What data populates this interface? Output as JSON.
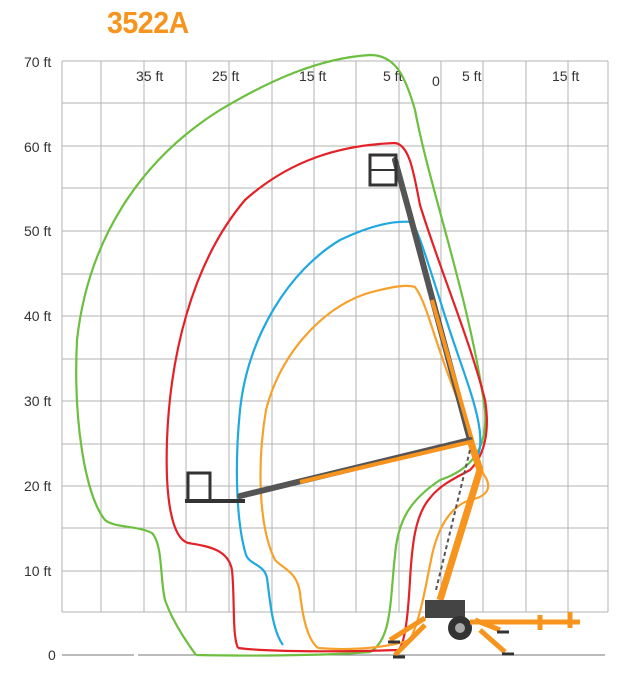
{
  "title": "3522A",
  "colors": {
    "title": "#f7941d",
    "grid": "#b3b3b3",
    "envelopes": [
      "#6cbf3f",
      "#e32228",
      "#20a9e0",
      "#f7a12d"
    ],
    "boom": "#f7941d",
    "mast": "#555555"
  },
  "y_axis": {
    "ticks": [
      "0",
      "10 ft",
      "20 ft",
      "30 ft",
      "40 ft",
      "50 ft",
      "60 ft",
      "70 ft"
    ]
  },
  "x_axis": {
    "ticks": [
      "35 ft",
      "25 ft",
      "15 ft",
      "5 ft",
      "0",
      "5 ft",
      "15 ft"
    ]
  }
}
